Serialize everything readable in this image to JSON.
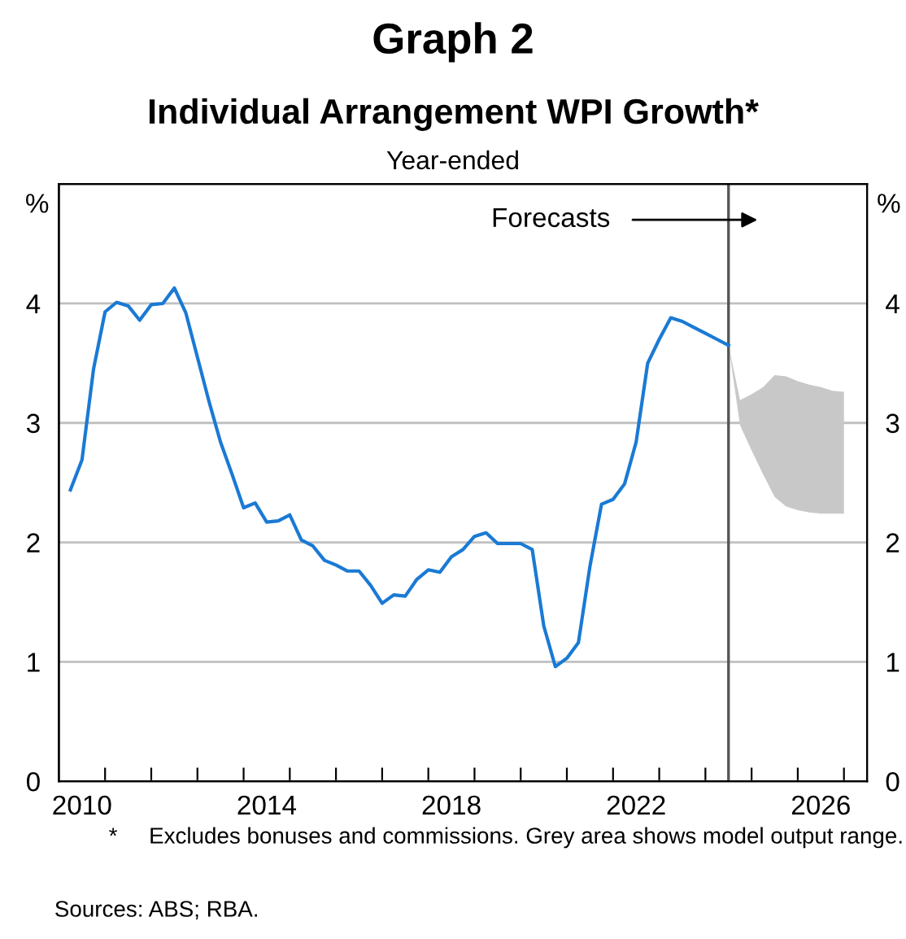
{
  "chart_data": {
    "type": "line",
    "title": "Graph 2",
    "subtitle": "Individual Arrangement WPI Growth*",
    "ylabel": "%",
    "y2label": "%",
    "annotations": [
      "Year-ended",
      "Forecasts",
      "*     Excludes bonuses and commissions. Grey area shows model output range.",
      "Sources: ABS; RBA."
    ],
    "series": [
      {
        "color": "#1a7ad4",
        "x": [
          2010.25,
          2010.5,
          2010.75,
          2011.0,
          2011.25,
          2011.5,
          2011.75,
          2012.0,
          2012.25,
          2012.5,
          2012.75,
          2013.0,
          2013.25,
          2013.5,
          2013.75,
          2014.0,
          2014.25,
          2014.5,
          2014.75,
          2015.0,
          2015.25,
          2015.5,
          2015.75,
          2016.0,
          2016.25,
          2016.5,
          2016.75,
          2017.0,
          2017.25,
          2017.5,
          2017.75,
          2018.0,
          2018.25,
          2018.5,
          2018.75,
          2019.0,
          2019.25,
          2019.5,
          2019.75,
          2020.0,
          2020.25,
          2020.5,
          2020.75,
          2021.0,
          2021.25,
          2021.5,
          2021.75,
          2022.0,
          2022.25,
          2022.5,
          2022.75,
          2023.0,
          2023.25,
          2023.5,
          2023.75,
          2024.0,
          2024.25,
          2024.5
        ],
        "values": [
          2.44,
          2.69,
          3.45,
          3.93,
          4.01,
          3.98,
          3.86,
          3.99,
          4.0,
          4.13,
          3.92,
          3.55,
          3.18,
          2.84,
          2.57,
          2.29,
          2.33,
          2.17,
          2.18,
          2.23,
          2.02,
          1.97,
          1.85,
          1.81,
          1.76,
          1.76,
          1.64,
          1.49,
          1.56,
          1.55,
          1.69,
          1.77,
          1.75,
          1.88,
          1.94,
          2.05,
          2.08,
          1.99,
          1.99,
          1.99,
          1.94,
          1.3,
          0.96,
          1.03,
          1.16,
          1.8,
          2.32,
          2.36,
          2.49,
          2.84,
          3.5,
          3.7,
          3.88,
          3.85,
          3.8,
          3.75,
          3.7,
          3.65
        ]
      },
      {
        "type": "area",
        "color": "#c8c8c8",
        "x": [
          2024.5,
          2024.75,
          2025.0,
          2025.25,
          2025.5,
          2025.75,
          2026.0,
          2026.25,
          2026.5,
          2026.75,
          2027.0
        ],
        "values": [
          null,
          null,
          null,
          null,
          null,
          null,
          null,
          null,
          null,
          null,
          null
        ],
        "upper": [
          3.65,
          3.19,
          3.24,
          3.3,
          3.4,
          3.39,
          3.35,
          3.32,
          3.3,
          3.27,
          3.26
        ],
        "lower": [
          3.65,
          2.98,
          2.77,
          2.57,
          2.38,
          2.3,
          2.27,
          2.25,
          2.24,
          2.24,
          2.24
        ]
      }
    ],
    "xlim": [
      2010,
      2027.5
    ],
    "xticks": [
      {
        "value": 2010.5,
        "label": "2010"
      },
      {
        "value": 2014.5,
        "label": "2014"
      },
      {
        "value": 2018.5,
        "label": "2018"
      },
      {
        "value": 2022.5,
        "label": "2022"
      },
      {
        "value": 2026.5,
        "label": "2026"
      },
      {
        "value": 2011,
        "label": null
      },
      {
        "value": 2012,
        "label": null
      },
      {
        "value": 2013,
        "label": null
      },
      {
        "value": 2014,
        "label": null
      },
      {
        "value": 2015,
        "label": null
      },
      {
        "value": 2016,
        "label": null
      },
      {
        "value": 2017,
        "label": null
      },
      {
        "value": 2018,
        "label": null
      },
      {
        "value": 2019,
        "label": null
      },
      {
        "value": 2020,
        "label": null
      },
      {
        "value": 2021,
        "label": null
      },
      {
        "value": 2022,
        "label": null
      },
      {
        "value": 2023,
        "label": null
      },
      {
        "value": 2024,
        "label": null
      },
      {
        "value": 2025,
        "label": null
      },
      {
        "value": 2026,
        "label": null
      },
      {
        "value": 2027,
        "label": null
      }
    ],
    "ylim": [
      0,
      5
    ],
    "yticks": [
      0,
      1,
      2,
      3,
      4
    ],
    "y2lim": [
      0,
      5
    ],
    "y2ticks": [
      0,
      1,
      2,
      3,
      4
    ],
    "ref_lines": [
      {
        "axis": "x",
        "value": 2024.5,
        "label": null,
        "color": "#555555"
      }
    ],
    "grid": "y",
    "legend": false,
    "marker": "none",
    "line_style": "solid"
  }
}
